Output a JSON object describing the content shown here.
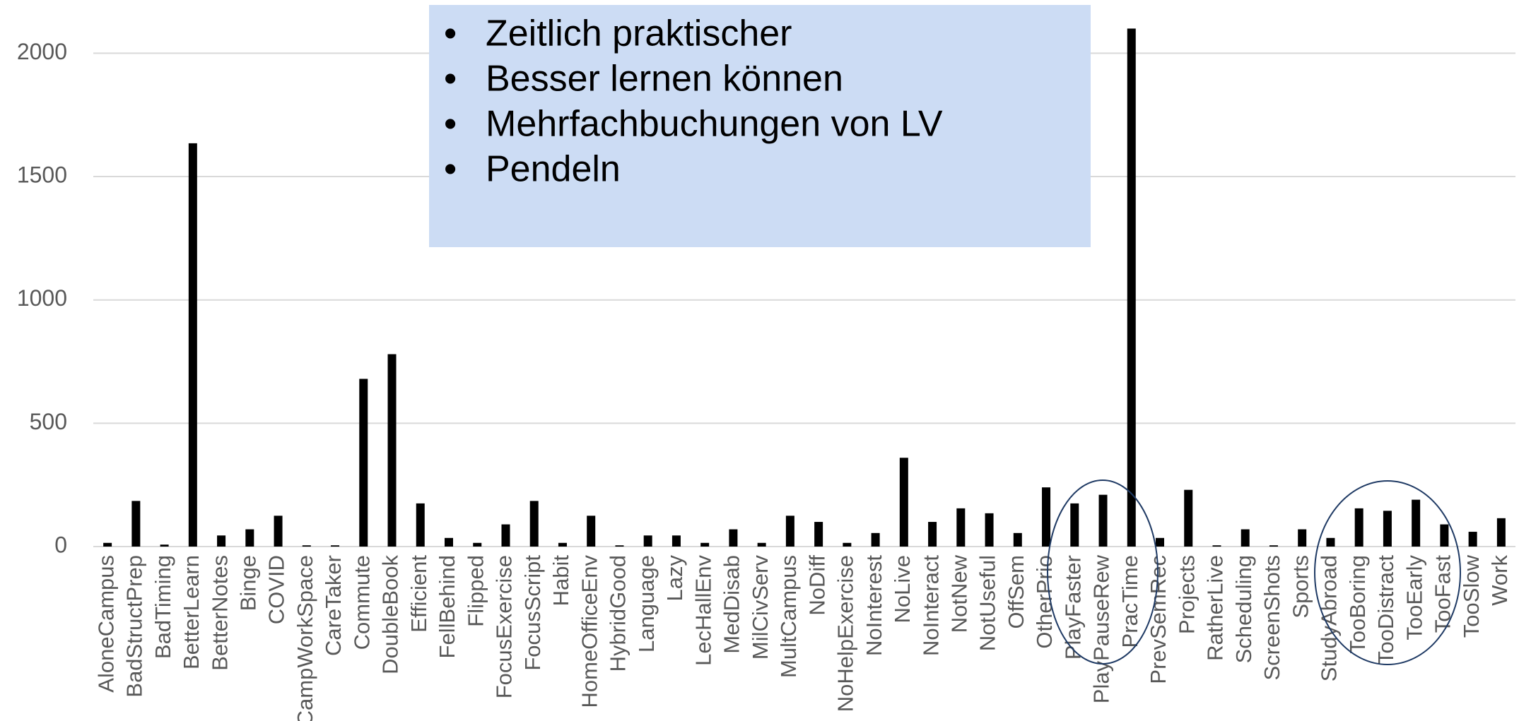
{
  "chart_data": {
    "type": "bar",
    "categories": [
      "AloneCampus",
      "BadStructPrep",
      "BadTiming",
      "BetterLearn",
      "BetterNotes",
      "Binge",
      "COVID",
      "CampWorkSpace",
      "CareTaker",
      "Commute",
      "DoubleBook",
      "Efficient",
      "FellBehind",
      "Flipped",
      "FocusExercise",
      "FocusScript",
      "Habit",
      "HomeOfficeEnv",
      "HybridGood",
      "Language",
      "Lazy",
      "LecHallEnv",
      "MedDisab",
      "MilCivServ",
      "MultCampus",
      "NoDiff",
      "NoHelpExercise",
      "NoInterest",
      "NoLive",
      "NoInteract",
      "NotNew",
      "NotUseful",
      "OffSem",
      "OtherPrio",
      "PlayFaster",
      "PlayPauseRew",
      "PracTime",
      "PrevSemRec",
      "Projects",
      "RatherLive",
      "Scheduling",
      "ScreenShots",
      "Sports",
      "StudyAbroad",
      "TooBoring",
      "TooDistract",
      "TooEarly",
      "TooFast",
      "TooSlow",
      "Work"
    ],
    "values": [
      15,
      185,
      8,
      1635,
      45,
      70,
      125,
      5,
      5,
      680,
      780,
      175,
      35,
      15,
      90,
      185,
      15,
      125,
      5,
      45,
      45,
      15,
      70,
      15,
      125,
      100,
      15,
      55,
      360,
      100,
      155,
      135,
      55,
      240,
      175,
      210,
      2100,
      35,
      230,
      5,
      70,
      5,
      70,
      35,
      155,
      145,
      190,
      90,
      60,
      115
    ],
    "color": "#000000",
    "ylim": [
      0,
      2150
    ],
    "yticks": [
      0,
      500,
      1000,
      1500,
      2000
    ],
    "grid": true,
    "annotations": [
      "Zeitlich praktischer",
      "Besser lernen können",
      "Mehrfachbuchungen von LV",
      "Pendeln"
    ]
  }
}
